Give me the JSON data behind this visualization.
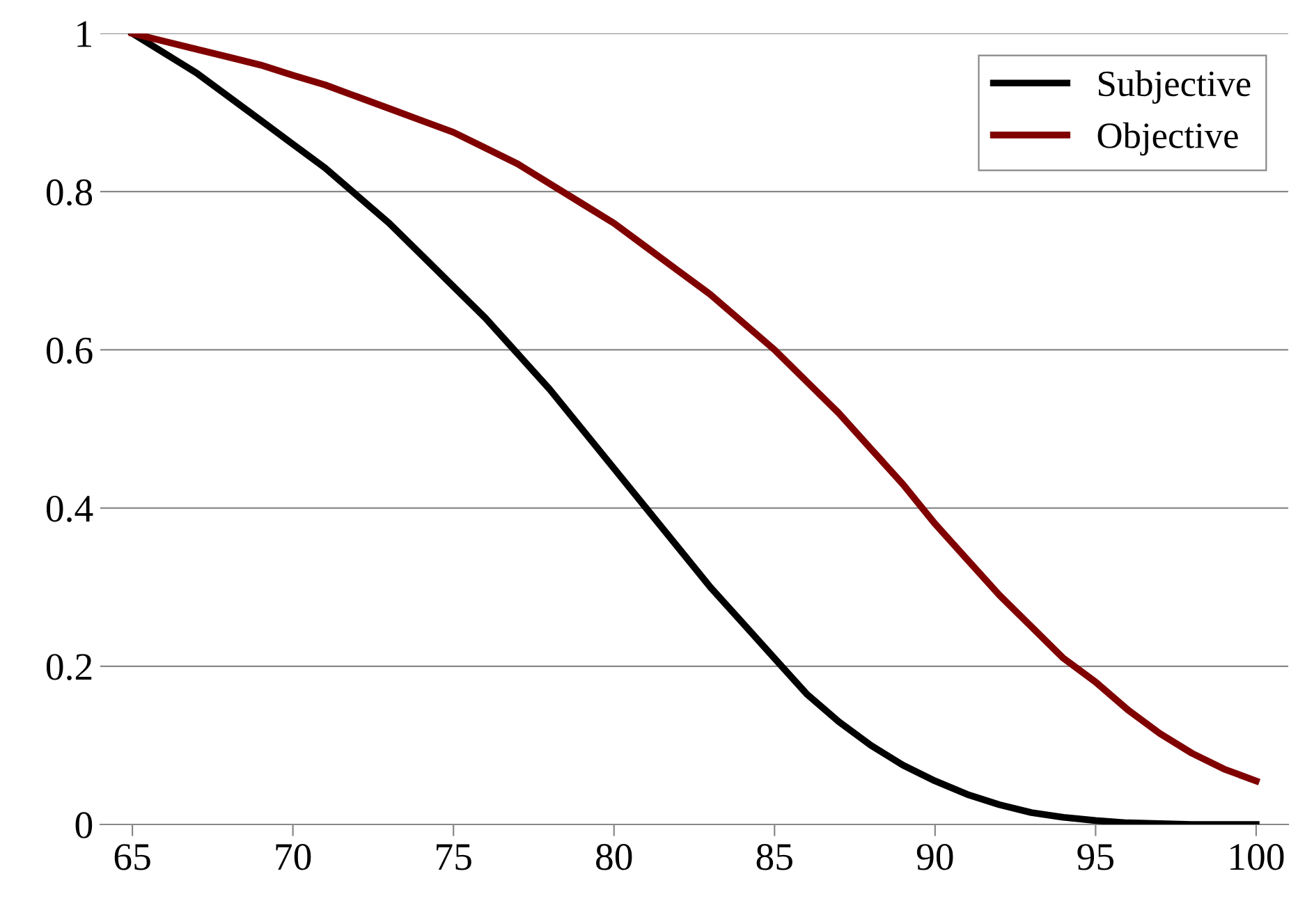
{
  "chart_data": {
    "type": "line",
    "x": [
      65,
      66,
      67,
      68,
      69,
      70,
      71,
      72,
      73,
      74,
      75,
      76,
      77,
      78,
      79,
      80,
      81,
      82,
      83,
      84,
      85,
      86,
      87,
      88,
      89,
      90,
      91,
      92,
      93,
      94,
      95,
      96,
      97,
      98,
      99,
      100
    ],
    "series": [
      {
        "name": "Subjective",
        "color": "#000000",
        "values": [
          1,
          0.975,
          0.95,
          0.92,
          0.89,
          0.86,
          0.83,
          0.795,
          0.76,
          0.72,
          0.68,
          0.64,
          0.595,
          0.55,
          0.5,
          0.45,
          0.4,
          0.35,
          0.3,
          0.255,
          0.21,
          0.165,
          0.13,
          0.1,
          0.075,
          0.055,
          0.038,
          0.025,
          0.015,
          0.009,
          0.005,
          0.002,
          0.001,
          0,
          0,
          0
        ]
      },
      {
        "name": "Objective",
        "color": "#800000",
        "values": [
          1,
          0.99,
          0.98,
          0.97,
          0.96,
          0.947,
          0.935,
          0.92,
          0.905,
          0.89,
          0.875,
          0.855,
          0.835,
          0.81,
          0.785,
          0.76,
          0.73,
          0.7,
          0.67,
          0.635,
          0.6,
          0.56,
          0.52,
          0.475,
          0.43,
          0.38,
          0.335,
          0.29,
          0.25,
          0.21,
          0.18,
          0.145,
          0.115,
          0.09,
          0.07,
          0.055
        ]
      }
    ],
    "xlim": [
      64,
      101
    ],
    "ylim": [
      0,
      1
    ],
    "xticks": [
      65,
      70,
      75,
      80,
      85,
      90,
      95,
      100
    ],
    "yticks": [
      0,
      0.2,
      0.4,
      0.6,
      0.8,
      1
    ],
    "grid": "y",
    "legend": "top right",
    "line_style": "solid",
    "marker": "none"
  }
}
